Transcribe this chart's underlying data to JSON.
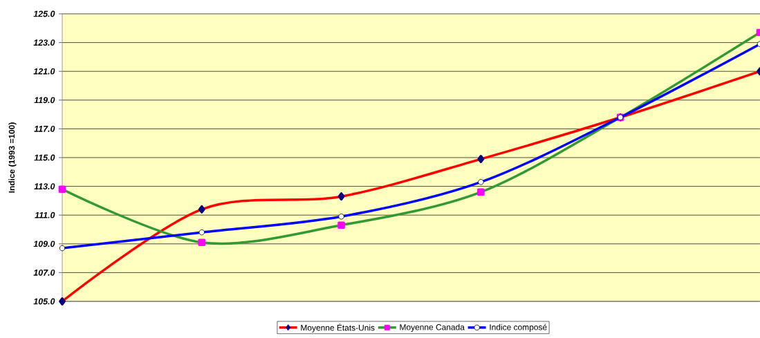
{
  "chart_data": {
    "type": "line",
    "ylabel": "Indice (1993 =100)",
    "categories": [
      null,
      null,
      null,
      null,
      null,
      null
    ],
    "ylim": [
      105,
      125
    ],
    "yticks": [
      {
        "value": 105,
        "label": "105.0"
      },
      {
        "value": 107,
        "label": "107.0"
      },
      {
        "value": 109,
        "label": "109.0"
      },
      {
        "value": 111,
        "label": "111.0"
      },
      {
        "value": 113,
        "label": "113.0"
      },
      {
        "value": 115,
        "label": "115.0"
      },
      {
        "value": 117,
        "label": "117.0"
      },
      {
        "value": 119,
        "label": "119.0"
      },
      {
        "value": 121,
        "label": "121.0"
      },
      {
        "value": 123,
        "label": "123.0"
      },
      {
        "value": 125,
        "label": "125.0"
      }
    ],
    "grid": "y",
    "legend": "bottom",
    "line_style": "solid",
    "series": [
      {
        "name": "Moyenne États-Unis",
        "color": "#ff0000",
        "marker": "diamond",
        "values": [
          105.0,
          111.4,
          112.3,
          114.9,
          117.8,
          121.0
        ]
      },
      {
        "name": "Moyenne Canada",
        "color": "#339933",
        "marker": "square",
        "values": [
          112.8,
          109.1,
          110.3,
          112.6,
          117.8,
          123.7
        ]
      },
      {
        "name": "Indice composé",
        "color": "#0000ff",
        "marker": "circle",
        "values": [
          108.7,
          109.8,
          110.9,
          113.3,
          117.8,
          122.9
        ]
      }
    ]
  }
}
